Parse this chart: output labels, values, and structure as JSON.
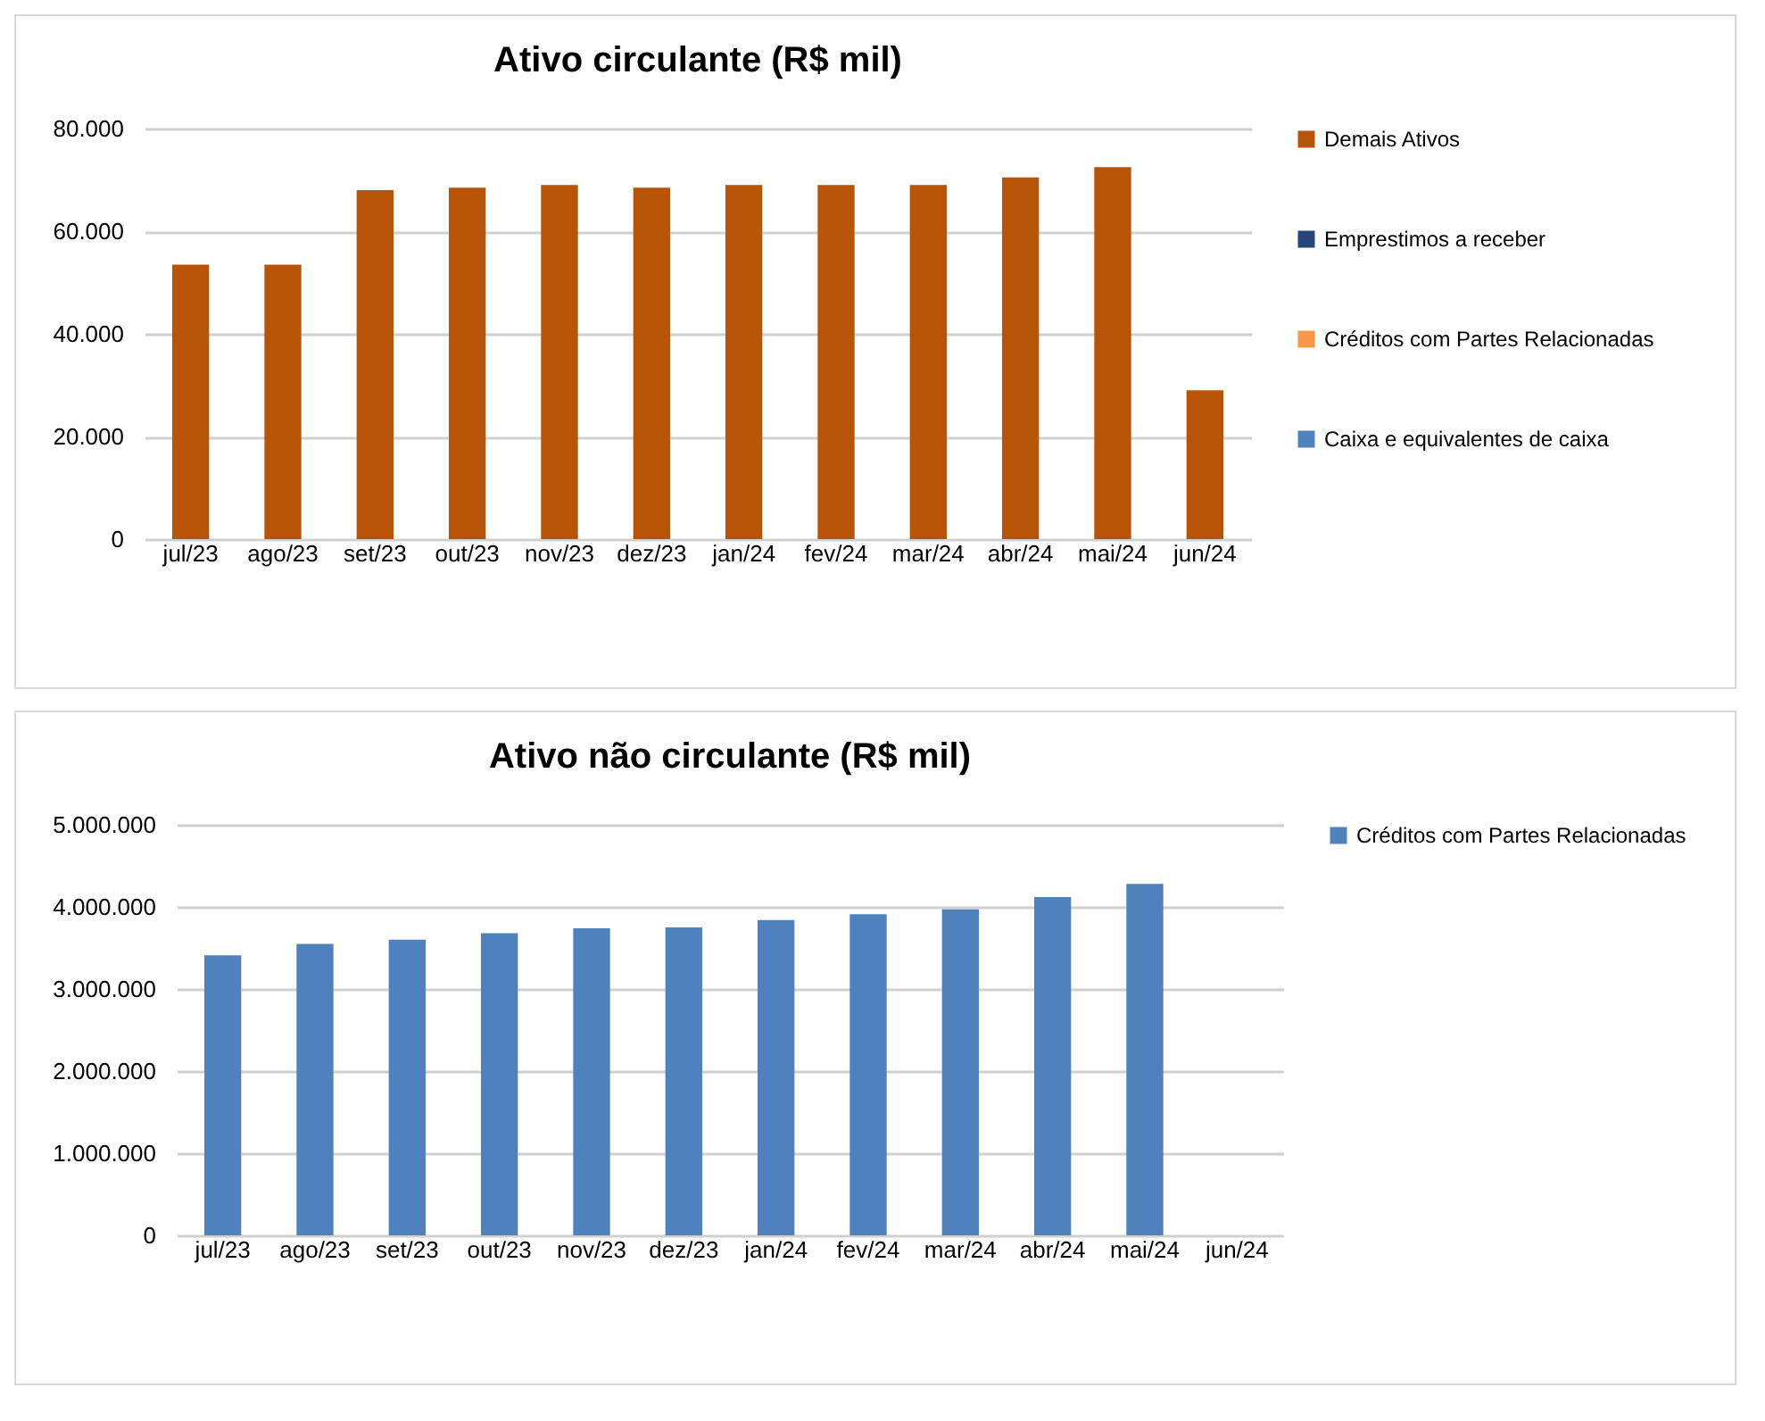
{
  "chart_data": [
    {
      "type": "bar",
      "title": "Ativo circulante (R$ mil)",
      "grid": "y",
      "legend": "right",
      "categories": [
        "jul/23",
        "ago/23",
        "set/23",
        "out/23",
        "nov/23",
        "dez/23",
        "jan/24",
        "fev/24",
        "mar/24",
        "abr/24",
        "mai/24",
        "jun/24"
      ],
      "series": [
        {
          "name": "Caixa e equivalentes de caixa",
          "color": "#4f81bd",
          "values": [
            null,
            null,
            null,
            null,
            null,
            null,
            null,
            null,
            null,
            null,
            null,
            null
          ]
        },
        {
          "name": "Créditos com Partes Relacionadas",
          "color": "#f79646",
          "values": [
            null,
            null,
            null,
            null,
            null,
            null,
            null,
            null,
            null,
            null,
            null,
            null
          ]
        },
        {
          "name": "Emprestimos a receber",
          "color": "#264478",
          "values": [
            null,
            null,
            null,
            null,
            null,
            null,
            null,
            null,
            null,
            null,
            null,
            null
          ]
        },
        {
          "name": "Demais Ativos",
          "color": "#b85407",
          "values": [
            53500,
            53500,
            68000,
            68500,
            69000,
            68500,
            69000,
            69000,
            69000,
            70500,
            72500,
            29000
          ]
        }
      ],
      "ylim": [
        0,
        80000
      ],
      "yticks": [
        0,
        {
          "value": 20000,
          "label": "20.000"
        },
        {
          "value": 40000,
          "label": "40.000"
        },
        {
          "value": 60000,
          "label": "60.000"
        },
        {
          "value": 80000,
          "label": "80.000"
        }
      ]
    },
    {
      "type": "bar",
      "title": "Ativo não circulante (R$ mil)",
      "grid": "y",
      "legend": "right",
      "categories": [
        "jul/23",
        "ago/23",
        "set/23",
        "out/23",
        "nov/23",
        "dez/23",
        "jan/24",
        "fev/24",
        "mar/24",
        "abr/24",
        "mai/24",
        "jun/24"
      ],
      "series": [
        {
          "name": "Créditos com Partes Relacionadas",
          "color": "#4f81bd",
          "values": [
            3410000,
            3550000,
            3600000,
            3680000,
            3740000,
            3750000,
            3840000,
            3910000,
            3970000,
            4120000,
            4280000,
            0
          ]
        }
      ],
      "ylim": [
        0,
        5000000
      ],
      "yticks": [
        0,
        {
          "value": 1000000,
          "label": "1.000.000"
        },
        {
          "value": 2000000,
          "label": "2.000.000"
        },
        {
          "value": 3000000,
          "label": "3.000.000"
        },
        {
          "value": 4000000,
          "label": "4.000.000"
        },
        {
          "value": 5000000,
          "label": "5.000.000"
        }
      ]
    }
  ]
}
